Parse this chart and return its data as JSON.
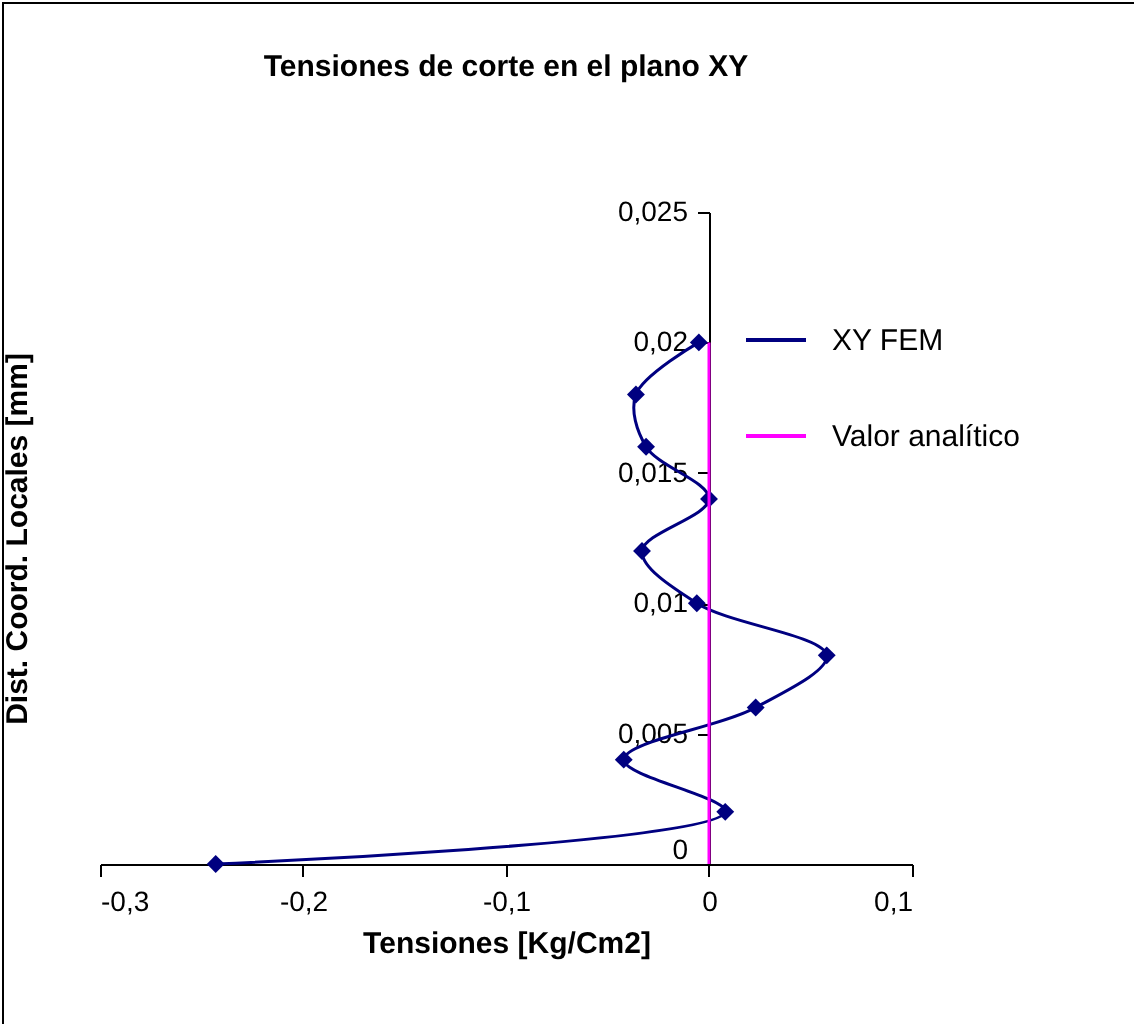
{
  "chart_data": {
    "type": "line",
    "title": "Tensiones de corte en el plano XY",
    "xlabel": "Tensiones [Kg/Cm2]",
    "ylabel": "Dist. Coord. Locales [mm]",
    "xlim": [
      -0.3,
      0.1
    ],
    "xticks": [
      {
        "value": -0.3,
        "label": "-0,3"
      },
      {
        "value": -0.2,
        "label": "-0,2"
      },
      {
        "value": -0.1,
        "label": "-0,1"
      },
      0,
      {
        "value": 0.1,
        "label": "0,1"
      }
    ],
    "ylim": [
      0,
      0.025
    ],
    "yticks": [
      0,
      {
        "value": 0.005,
        "label": "0,005"
      },
      {
        "value": 0.01,
        "label": "0,01"
      },
      {
        "value": 0.015,
        "label": "0,015"
      },
      {
        "value": 0.02,
        "label": "0,02"
      },
      {
        "value": 0.025,
        "label": "0,025"
      }
    ],
    "grid": false,
    "legend": "top right",
    "marker": "diamond",
    "series": [
      {
        "name": "XY FEM",
        "color": "#000080",
        "x": [
          -0.243,
          0.008,
          -0.042,
          0.023,
          0.058,
          -0.006,
          -0.033,
          0,
          -0.031,
          -0.036,
          -0.005
        ],
        "values": [
          0,
          0.002,
          0.004,
          0.006,
          0.008,
          0.01,
          0.012,
          0.014,
          0.016,
          0.018,
          0.02
        ]
      },
      {
        "name": "Valor analítico",
        "color": "#ff00ff",
        "marker": "none",
        "x": [
          0,
          0
        ],
        "values": [
          0,
          0.02
        ]
      }
    ]
  }
}
